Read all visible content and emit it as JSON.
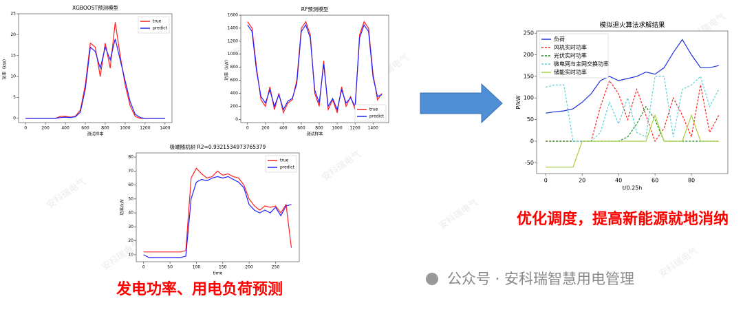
{
  "chart_data": [
    {
      "type": "line",
      "title": "XGBOOST预测模型",
      "x_label": "测试样本",
      "y_label": "功率（kW）",
      "legend": "upper right",
      "x": [
        0,
        50,
        100,
        150,
        200,
        250,
        300,
        350,
        400,
        450,
        500,
        550,
        600,
        650,
        700,
        750,
        800,
        850,
        900,
        950,
        1000,
        1050,
        1100,
        1150,
        1200,
        1250,
        1300,
        1350,
        1400
      ],
      "series": [
        {
          "name": "true",
          "color": "#ff2020",
          "values": [
            0,
            0,
            0,
            0,
            0,
            0,
            0,
            0.5,
            0.5,
            0.3,
            0.5,
            2,
            8,
            18,
            17,
            10,
            18,
            12,
            23,
            15,
            8,
            3,
            0.5,
            0,
            0,
            0,
            0,
            0,
            0
          ]
        },
        {
          "name": "predict",
          "color": "#2020ff",
          "values": [
            0,
            0,
            0,
            0,
            0,
            0,
            0,
            0.2,
            0.3,
            0.2,
            0.4,
            1.5,
            7,
            17,
            16,
            12,
            17,
            14,
            19,
            14,
            9,
            4,
            1,
            0.2,
            0,
            0,
            0,
            0,
            0
          ]
        }
      ],
      "xlim": [
        -70,
        1470
      ],
      "ylim": [
        -1,
        25
      ],
      "xticks": [
        0,
        200,
        400,
        600,
        800,
        1000,
        1200,
        1400
      ],
      "yticks": [
        0,
        5,
        10,
        15,
        20,
        25
      ]
    },
    {
      "type": "line",
      "title": "RF预测模型",
      "x_label": "测试样本",
      "y_label": "功率（kW）",
      "legend": "lower right",
      "x": [
        0,
        50,
        100,
        150,
        200,
        250,
        300,
        350,
        400,
        450,
        500,
        550,
        600,
        650,
        700,
        750,
        800,
        850,
        900,
        950,
        1000,
        1050,
        1100,
        1150,
        1200,
        1250,
        1300,
        1350,
        1400,
        1450,
        1500
      ],
      "series": [
        {
          "name": "true",
          "color": "#ff2020",
          "values": [
            1500,
            1400,
            800,
            300,
            200,
            500,
            150,
            400,
            100,
            250,
            300,
            600,
            1400,
            1500,
            1300,
            400,
            200,
            900,
            150,
            300,
            100,
            500,
            200,
            350,
            150,
            1300,
            1500,
            1400,
            700,
            300,
            400
          ]
        },
        {
          "name": "predict",
          "color": "#2020ff",
          "values": [
            1450,
            1350,
            750,
            350,
            250,
            450,
            200,
            380,
            150,
            280,
            320,
            550,
            1350,
            1450,
            1250,
            450,
            250,
            850,
            200,
            320,
            150,
            450,
            250,
            330,
            200,
            1250,
            1450,
            1350,
            650,
            350,
            380
          ]
        }
      ],
      "xlim": [
        -75,
        1575
      ],
      "ylim": [
        -50,
        1600
      ],
      "xticks": [
        0,
        200,
        400,
        600,
        800,
        1000,
        1200,
        1400
      ],
      "yticks": [
        0,
        200,
        400,
        600,
        800,
        1000,
        1200,
        1400,
        1600
      ]
    },
    {
      "type": "line",
      "title": "极端随机树 R2=0.9321534973765379",
      "x_label": "time",
      "y_label": "功率/kW",
      "legend": "upper right",
      "x": [
        0,
        10,
        20,
        30,
        40,
        50,
        60,
        70,
        80,
        90,
        100,
        110,
        120,
        130,
        140,
        150,
        160,
        170,
        180,
        190,
        200,
        210,
        220,
        230,
        240,
        250,
        260,
        270,
        280
      ],
      "series": [
        {
          "name": "true",
          "color": "#ff2020",
          "values": [
            12,
            12,
            12,
            12,
            12,
            12,
            12,
            12,
            13,
            65,
            72,
            68,
            65,
            66,
            70,
            67,
            68,
            66,
            65,
            60,
            50,
            45,
            42,
            45,
            44,
            45,
            40,
            46,
            15
          ]
        },
        {
          "name": "predict",
          "color": "#2020ff",
          "values": [
            10,
            8,
            8,
            8,
            8,
            8,
            8,
            8,
            9,
            50,
            62,
            64,
            63,
            65,
            66,
            65,
            66,
            64,
            62,
            58,
            46,
            42,
            40,
            42,
            40,
            44,
            38,
            45,
            46
          ]
        }
      ],
      "xlim": [
        -14,
        295
      ],
      "ylim": [
        5,
        83
      ],
      "xticks": [
        0,
        50,
        100,
        150,
        200,
        250
      ],
      "yticks": [
        10,
        20,
        30,
        40,
        50,
        60,
        70,
        80
      ]
    },
    {
      "type": "line",
      "title": "模拟退火算法求解结果",
      "x_label": "t/0.25h",
      "y_label": "P/kW",
      "legend": "upper left",
      "x": [
        0,
        5,
        10,
        15,
        20,
        25,
        30,
        35,
        40,
        45,
        50,
        55,
        60,
        65,
        70,
        75,
        80,
        85,
        90,
        95
      ],
      "series": [
        {
          "name": "负荷",
          "color": "#1f2fe0",
          "dash": false,
          "values": [
            65,
            68,
            70,
            75,
            90,
            110,
            140,
            150,
            140,
            145,
            150,
            160,
            155,
            170,
            205,
            235,
            200,
            170,
            170,
            175
          ]
        },
        {
          "name": "风机实时功率",
          "color": "#ff2020",
          "dash": true,
          "values": [
            0,
            0,
            0,
            0,
            0,
            0,
            80,
            140,
            110,
            50,
            120,
            60,
            0,
            30,
            100,
            60,
            10,
            130,
            20,
            60
          ]
        },
        {
          "name": "光伏实时功率",
          "color": "#1a8a1a",
          "dash": true,
          "values": [
            0,
            0,
            0,
            0,
            0,
            0,
            0,
            0,
            0,
            10,
            40,
            80,
            50,
            0,
            0,
            0,
            0,
            0,
            0,
            0
          ]
        },
        {
          "name": "微电网与主网交换功率",
          "color": "#5fd0d8",
          "dash": true,
          "values": [
            125,
            130,
            130,
            0,
            0,
            0,
            20,
            90,
            40,
            100,
            20,
            10,
            150,
            150,
            10,
            120,
            130,
            150,
            80,
            120
          ]
        },
        {
          "name": "储能实时功率",
          "color": "#a8d040",
          "dash": false,
          "values": [
            -60,
            -60,
            -60,
            -60,
            0,
            0,
            0,
            0,
            0,
            0,
            0,
            0,
            60,
            0,
            0,
            0,
            60,
            0,
            0,
            0
          ]
        }
      ],
      "xlim": [
        -5,
        100
      ],
      "ylim": [
        -75,
        255
      ],
      "xticks": [
        0,
        20,
        40,
        60,
        80
      ],
      "yticks": [
        -50,
        0,
        50,
        100,
        150,
        200,
        250
      ]
    }
  ],
  "captions": [
    "发电功率、用电负荷预测",
    "优化调度，提高新能源就地消纳"
  ],
  "footer": "公众号 · 安科瑞智慧用电管理",
  "watermark": "安科瑞电气"
}
